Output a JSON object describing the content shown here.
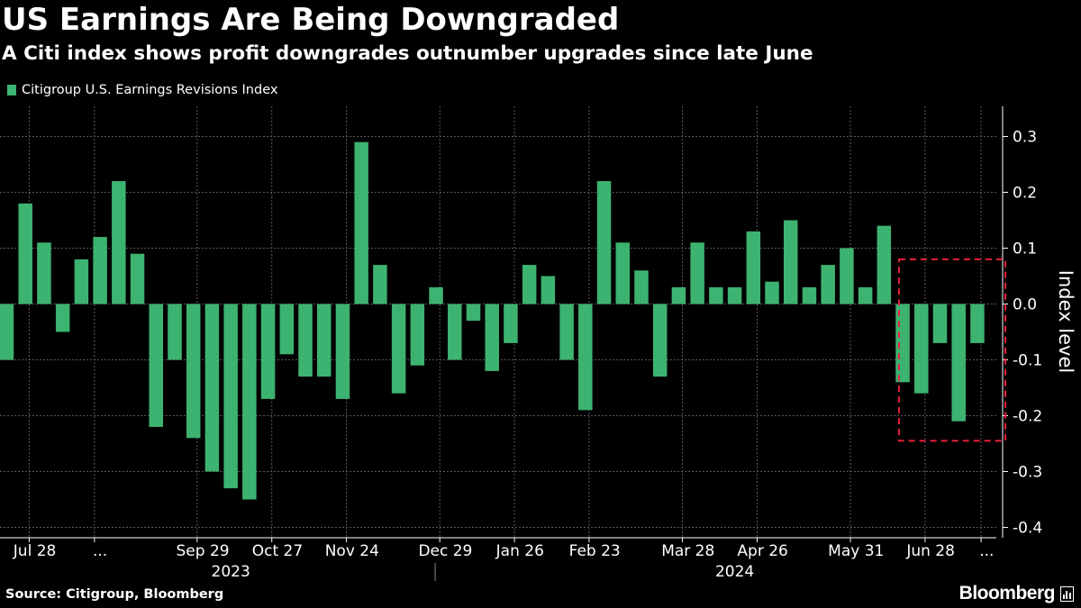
{
  "title": "US Earnings Are Being Downgraded",
  "subtitle": "A Citi index shows profit downgrades outnumber upgrades since late June",
  "legend_label": "Citigroup U.S. Earnings Revisions Index",
  "source": "Source: Citigroup, Bloomberg",
  "brand": "Bloomberg",
  "colors": {
    "bar": "#3cb371",
    "background": "#000000",
    "grid": "#5a5a5a",
    "highlight": "#e8203a"
  },
  "chart_data": {
    "type": "bar",
    "series": [
      {
        "name": "Citigroup U.S. Earnings Revisions Index",
        "values": [
          -0.1,
          0.18,
          0.11,
          -0.05,
          0.08,
          0.12,
          0.22,
          0.09,
          -0.22,
          -0.1,
          -0.24,
          -0.3,
          -0.33,
          -0.35,
          -0.17,
          -0.09,
          -0.13,
          -0.13,
          -0.17,
          0.29,
          0.07,
          -0.16,
          -0.11,
          0.03,
          -0.1,
          -0.03,
          -0.12,
          -0.07,
          0.07,
          0.05,
          -0.1,
          -0.19,
          0.22,
          0.11,
          0.06,
          -0.13,
          0.03,
          0.11,
          0.03,
          0.03,
          0.13,
          0.04,
          0.15,
          0.03,
          0.07,
          0.1,
          0.03,
          0.14,
          -0.14,
          -0.16,
          -0.07,
          -0.21,
          -0.07
        ]
      }
    ],
    "x_tick_labels": [
      {
        "label": "Jul 28",
        "index": 1.5
      },
      {
        "label": "...",
        "index": 5
      },
      {
        "label": "Sep 29",
        "index": 10.5
      },
      {
        "label": "Oct 27",
        "index": 14.5
      },
      {
        "label": "Nov 24",
        "index": 18.5
      },
      {
        "label": "Dec 29",
        "index": 23.5
      },
      {
        "label": "Jan 26",
        "index": 27.5
      },
      {
        "label": "Feb 23",
        "index": 31.5
      },
      {
        "label": "Mar 28",
        "index": 36.5
      },
      {
        "label": "Apr 26",
        "index": 40.5
      },
      {
        "label": "May 31",
        "index": 45.5
      },
      {
        "label": "Jun 28",
        "index": 49.5
      },
      {
        "label": "...",
        "index": 52.5
      }
    ],
    "x_year_labels": [
      {
        "label": "2023",
        "index": 12
      },
      {
        "label": "2024",
        "index": 39
      }
    ],
    "year_divider_index": 23,
    "y_ticks": [
      0.3,
      0.2,
      0.1,
      0.0,
      -0.1,
      -0.2,
      -0.3,
      -0.4
    ],
    "y_tick_labels": [
      "0.3",
      "0.2",
      "0.1",
      "0.0",
      "-0.1",
      "-0.2",
      "-0.3",
      "-0.4"
    ],
    "ylim": [
      -0.42,
      0.35
    ],
    "ylabel": "Index level",
    "y_axis_side": "right",
    "grid": true,
    "highlight_box": {
      "from_index": 47.8,
      "to_index": 53.5,
      "y_top": 0.08,
      "y_bottom": -0.245
    }
  }
}
